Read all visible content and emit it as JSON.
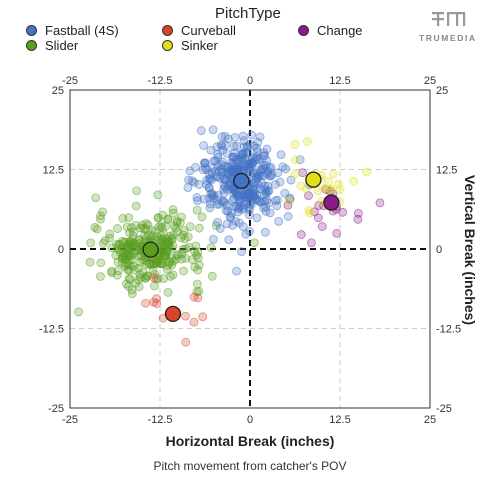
{
  "legend": {
    "title": "PitchType",
    "items": [
      {
        "label": "Fastball (4S)",
        "color": "#4472c4"
      },
      {
        "label": "Curveball",
        "color": "#d9432a"
      },
      {
        "label": "Change",
        "color": "#8b1a8b"
      },
      {
        "label": "Slider",
        "color": "#5a9e1f"
      },
      {
        "label": "Sinker",
        "color": "#e0e01a"
      }
    ]
  },
  "logo": {
    "text": "TRUMEDIA",
    "icon": "trumedia-logo-icon"
  },
  "chart_data": {
    "type": "scatter",
    "xlabel": "Horizontal Break (inches)",
    "ylabel": "Vertical Break (inches)",
    "caption": "Pitch movement from catcher's POV",
    "xlim": [
      -25,
      25
    ],
    "ylim": [
      -25,
      25
    ],
    "xticks": [
      "-25",
      "-12.5",
      "0",
      "12.5",
      "25"
    ],
    "yticks": [
      "25",
      "12.5",
      "0",
      "-12.5",
      "-25"
    ],
    "grid": true,
    "legend_position": "top",
    "series": [
      {
        "name": "Fastball (4S)",
        "color": "#4472c4",
        "mean": [
          -1.2,
          10.7
        ],
        "spread": [
          3.0,
          3.5
        ],
        "count": 340
      },
      {
        "name": "Sinker",
        "color": "#e0e01a",
        "mean": [
          8.8,
          10.9
        ],
        "spread": [
          2.8,
          2.5
        ],
        "count": 25
      },
      {
        "name": "Change",
        "color": "#8b1a8b",
        "mean": [
          11.3,
          7.3
        ],
        "spread": [
          2.6,
          2.7
        ],
        "count": 22
      },
      {
        "name": "Slider",
        "color": "#5a9e1f",
        "mean": [
          -13.8,
          -0.1
        ],
        "spread": [
          3.7,
          2.8
        ],
        "count": 280
      },
      {
        "name": "Curveball",
        "color": "#d9432a",
        "mean": [
          -10.7,
          -10.2
        ],
        "spread": [
          2.8,
          2.0
        ],
        "count": 12
      }
    ]
  }
}
